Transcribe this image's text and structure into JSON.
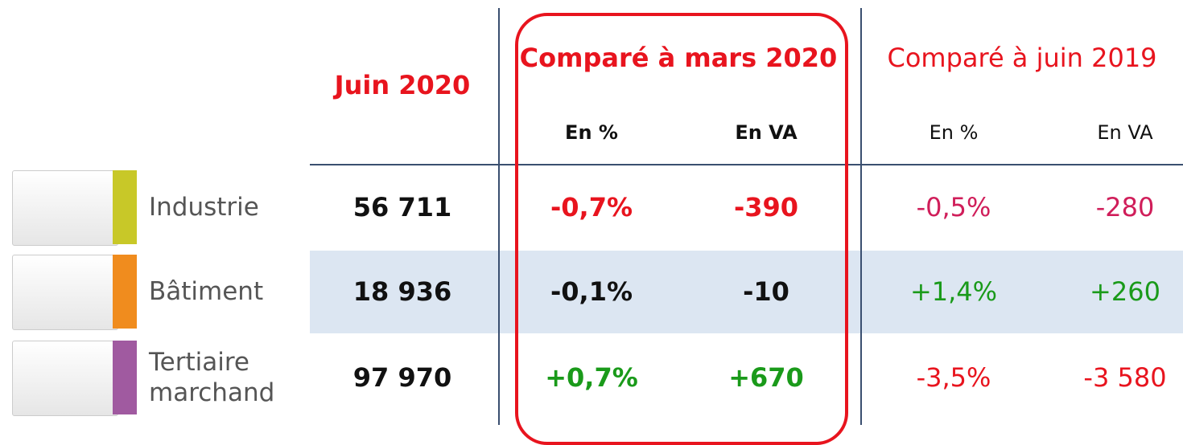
{
  "header": {
    "current": "Juin 2020",
    "group1": "Comparé à mars 2020",
    "group2": "Comparé à juin 2019",
    "sub": [
      "En %",
      "En VA",
      "En %",
      "En VA"
    ]
  },
  "rows": [
    {
      "sector": "Industrie",
      "values": [
        "56 711",
        "-0,7%",
        "-390",
        "-0,5%",
        "-280"
      ]
    },
    {
      "sector": "Bâtiment",
      "values": [
        "18 936",
        "-0,1%",
        "-10",
        "+1,4%",
        "+260"
      ]
    },
    {
      "sector": "Tertiaire marchand",
      "values": [
        "97 970",
        "+0,7%",
        "+670",
        "-3,5%",
        "-3 580"
      ]
    }
  ]
}
